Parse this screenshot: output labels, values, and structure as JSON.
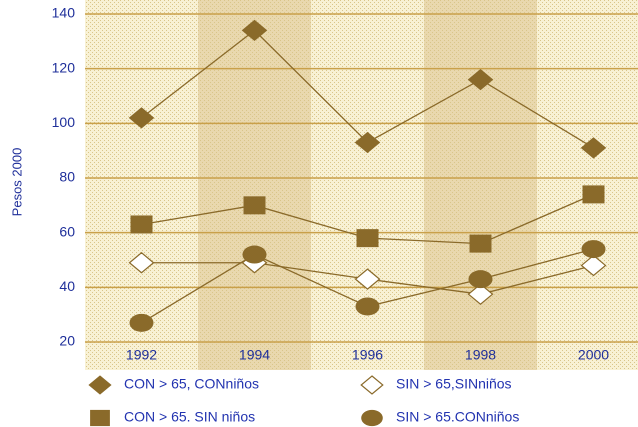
{
  "chart_data": {
    "type": "line",
    "y_label": "Pesos 2000",
    "categories": [
      "1992",
      "1994",
      "1996",
      "1998",
      "2000"
    ],
    "series": [
      {
        "name": "CON > 65, CONniños",
        "color": "#8a6a2a",
        "marker": "diamond",
        "values": [
          102,
          134,
          93,
          116,
          91
        ]
      },
      {
        "name": "SIN > 65,SINniños",
        "color": "#8a6a2a",
        "marker": "diamond-open",
        "values": [
          49,
          49,
          43,
          37.5,
          48
        ]
      },
      {
        "name": "CON > 65. SIN niños",
        "color": "#8a6a2a",
        "marker": "square",
        "values": [
          63,
          70,
          58,
          56,
          74
        ]
      },
      {
        "name": "SIN > 65.CONniños",
        "color": "#8a6a2a",
        "marker": "circle",
        "values": [
          27,
          52,
          33,
          43,
          54
        ]
      }
    ],
    "ylim": [
      20,
      140
    ],
    "yticks": [
      20,
      40,
      60,
      80,
      100,
      120,
      140
    ],
    "grid": true,
    "band_color": "#e9d8ae",
    "plot_color": "#f8f1d4",
    "grid_color": "#c9a04a"
  }
}
